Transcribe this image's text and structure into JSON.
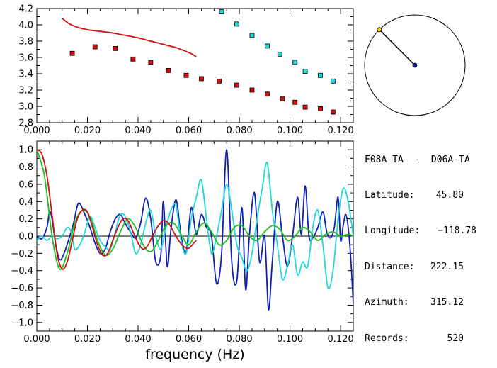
{
  "chart_data": [
    {
      "type": "scatter",
      "xlim": [
        0.0,
        0.125
      ],
      "ylim": [
        2.8,
        4.2
      ],
      "x_ticks": [
        "0.000",
        "0.020",
        "0.040",
        "0.060",
        "0.080",
        "0.100",
        "0.120"
      ],
      "y_ticks": [
        "2.8",
        "3.0",
        "3.2",
        "3.4",
        "3.6",
        "3.8",
        "4.0",
        "4.2"
      ],
      "series": [
        {
          "kind": "line",
          "color": "#d01010",
          "x": [
            0.01,
            0.013,
            0.016,
            0.02,
            0.025,
            0.03,
            0.035,
            0.04,
            0.045,
            0.05,
            0.055,
            0.06,
            0.063
          ],
          "y": [
            4.08,
            4.01,
            3.97,
            3.94,
            3.92,
            3.9,
            3.87,
            3.84,
            3.8,
            3.76,
            3.72,
            3.66,
            3.61
          ]
        },
        {
          "kind": "markers",
          "color": "#d01010",
          "x": [
            0.014,
            0.023,
            0.031,
            0.038,
            0.045,
            0.052,
            0.059,
            0.065,
            0.072,
            0.079,
            0.085,
            0.091,
            0.097,
            0.102,
            0.106,
            0.112,
            0.117
          ],
          "y": [
            3.65,
            3.73,
            3.71,
            3.58,
            3.54,
            3.44,
            3.38,
            3.34,
            3.31,
            3.26,
            3.2,
            3.15,
            3.09,
            3.05,
            2.99,
            2.97,
            2.93
          ]
        },
        {
          "kind": "markers",
          "color": "#20d8d8",
          "x": [
            0.073,
            0.079,
            0.085,
            0.091,
            0.096,
            0.102,
            0.106,
            0.112,
            0.117
          ],
          "y": [
            4.16,
            4.01,
            3.87,
            3.74,
            3.64,
            3.54,
            3.43,
            3.38,
            3.31
          ]
        }
      ]
    },
    {
      "type": "line",
      "xlim": [
        0.0,
        0.125
      ],
      "ylim": [
        -1.1,
        1.1
      ],
      "x_ticks": [
        "0.000",
        "0.020",
        "0.040",
        "0.060",
        "0.080",
        "0.100",
        "0.120"
      ],
      "y_ticks": [
        "1.0",
        "0.8",
        "0.6",
        "0.4",
        "0.2",
        "0.0",
        "−0.2",
        "−0.4",
        "−0.6",
        "−0.8",
        "−1.0"
      ],
      "xlabel": "frequency (Hz)",
      "zero_line": true,
      "series": [
        {
          "color": "#1020b0",
          "x": [
            0.0,
            0.002,
            0.004,
            0.005,
            0.006,
            0.0075,
            0.009,
            0.0105,
            0.0125,
            0.0145,
            0.0165,
            0.019,
            0.021,
            0.023,
            0.025,
            0.027,
            0.029,
            0.031,
            0.033,
            0.035,
            0.037,
            0.039,
            0.041,
            0.043,
            0.045,
            0.047,
            0.049,
            0.05,
            0.0515,
            0.053,
            0.055,
            0.057,
            0.059,
            0.061,
            0.063,
            0.065,
            0.067,
            0.069,
            0.071,
            0.073,
            0.075,
            0.077,
            0.079,
            0.081,
            0.0825,
            0.084,
            0.086,
            0.088,
            0.09,
            0.0915,
            0.093,
            0.095,
            0.097,
            0.099,
            0.101,
            0.103,
            0.1045,
            0.106,
            0.1075,
            0.109,
            0.111,
            0.113,
            0.1145,
            0.116,
            0.1175,
            0.119,
            0.12,
            0.121,
            0.122,
            0.123,
            0.124,
            0.125
          ],
          "y": [
            0.0,
            -0.03,
            0.1,
            0.28,
            0.2,
            -0.1,
            -0.27,
            -0.22,
            -0.05,
            0.15,
            0.38,
            0.25,
            0.1,
            -0.08,
            -0.2,
            -0.15,
            0.05,
            0.2,
            0.25,
            0.14,
            0.05,
            -0.02,
            0.15,
            0.44,
            0.2,
            -0.3,
            -0.22,
            0.4,
            -0.35,
            0.08,
            0.42,
            0.0,
            -0.18,
            0.33,
            0.02,
            0.25,
            0.1,
            0.0,
            -0.55,
            -0.2,
            1.0,
            -0.3,
            -0.52,
            0.33,
            -0.62,
            0.02,
            0.5,
            -0.3,
            0.0,
            -0.85,
            -0.3,
            0.4,
            0.0,
            -0.35,
            0.0,
            0.45,
            0.02,
            0.58,
            0.0,
            -0.02,
            0.1,
            0.28,
            0.05,
            -0.02,
            0.1,
            0.45,
            -0.05,
            0.12,
            0.25,
            0.1,
            -0.25,
            -0.78
          ]
        },
        {
          "color": "#20d8d8",
          "x": [
            0.0,
            0.002,
            0.004,
            0.006,
            0.008,
            0.01,
            0.012,
            0.0135,
            0.015,
            0.017,
            0.019,
            0.021,
            0.023,
            0.025,
            0.027,
            0.029,
            0.031,
            0.033,
            0.035,
            0.037,
            0.039,
            0.041,
            0.043,
            0.045,
            0.047,
            0.049,
            0.051,
            0.053,
            0.055,
            0.057,
            0.059,
            0.061,
            0.063,
            0.065,
            0.067,
            0.069,
            0.071,
            0.073,
            0.075,
            0.077,
            0.079,
            0.081,
            0.083,
            0.085,
            0.087,
            0.089,
            0.091,
            0.093,
            0.095,
            0.097,
            0.099,
            0.101,
            0.103,
            0.105,
            0.107,
            0.109,
            0.111,
            0.113,
            0.115,
            0.117,
            0.119,
            0.121,
            0.123,
            0.125
          ],
          "y": [
            -0.05,
            0.0,
            -0.05,
            0.0,
            -0.03,
            0.0,
            0.1,
            0.05,
            -0.15,
            -0.1,
            0.05,
            0.23,
            0.1,
            -0.05,
            -0.12,
            -0.15,
            0.05,
            0.25,
            0.22,
            0.05,
            -0.2,
            -0.1,
            0.15,
            0.3,
            0.0,
            -0.15,
            0.1,
            0.3,
            0.35,
            -0.05,
            -0.2,
            0.2,
            0.45,
            0.65,
            0.2,
            -0.2,
            0.0,
            0.3,
            0.6,
            0.3,
            -0.1,
            -0.25,
            -0.4,
            -0.2,
            0.2,
            0.55,
            0.85,
            0.3,
            -0.1,
            -0.5,
            -0.35,
            -0.1,
            -0.45,
            -0.3,
            -0.35,
            0.1,
            0.3,
            -0.1,
            -0.6,
            -0.4,
            0.2,
            0.55,
            0.4,
            0.0
          ]
        },
        {
          "color": "#20c020",
          "x": [
            0.0,
            0.003,
            0.006,
            0.009,
            0.012,
            0.015,
            0.018,
            0.021,
            0.024,
            0.027,
            0.03,
            0.033,
            0.036,
            0.039,
            0.042,
            0.045,
            0.048,
            0.051,
            0.054,
            0.057,
            0.06,
            0.063,
            0.066,
            0.069,
            0.072,
            0.075,
            0.078,
            0.081,
            0.084,
            0.087,
            0.09,
            0.093,
            0.096,
            0.099,
            0.102,
            0.105,
            0.108,
            0.111,
            0.114,
            0.117,
            0.12,
            0.123,
            0.125
          ],
          "y": [
            1.0,
            0.7,
            0.0,
            -0.38,
            -0.2,
            0.15,
            0.3,
            0.22,
            -0.05,
            -0.22,
            -0.15,
            0.05,
            0.2,
            0.1,
            -0.1,
            -0.18,
            -0.05,
            0.12,
            0.15,
            0.02,
            -0.1,
            0.05,
            0.15,
            0.05,
            -0.1,
            -0.05,
            0.1,
            0.12,
            0.0,
            -0.05,
            0.05,
            0.12,
            0.08,
            -0.05,
            0.0,
            0.1,
            0.05,
            -0.05,
            0.02,
            0.05,
            0.0,
            0.02,
            0.0
          ]
        },
        {
          "color": "#d01010",
          "x": [
            0.0,
            0.002,
            0.004,
            0.006,
            0.008,
            0.01,
            0.012,
            0.014,
            0.016,
            0.018,
            0.02,
            0.022,
            0.024,
            0.026,
            0.028,
            0.03,
            0.032,
            0.034,
            0.036,
            0.038,
            0.04,
            0.042,
            0.044,
            0.046,
            0.048,
            0.05,
            0.052,
            0.054,
            0.056,
            0.058,
            0.06,
            0.062,
            0.063
          ],
          "y": [
            1.0,
            0.95,
            0.7,
            0.25,
            -0.2,
            -0.38,
            -0.3,
            -0.05,
            0.2,
            0.3,
            0.28,
            0.1,
            -0.1,
            -0.22,
            -0.2,
            -0.05,
            0.1,
            0.2,
            0.18,
            0.05,
            -0.08,
            -0.15,
            -0.1,
            0.02,
            0.12,
            0.18,
            0.15,
            0.05,
            -0.05,
            -0.12,
            -0.14,
            -0.08,
            -0.05
          ]
        }
      ]
    }
  ],
  "compass": {
    "azimuth_deg": 315.12,
    "colors": {
      "center": "#1020b0",
      "end": "#f0d020",
      "needle": "#000000"
    }
  },
  "station": {
    "pair": "F08A-TA  -  D06A-TA",
    "latitude_label": "Latitude:",
    "latitude": "45.80",
    "longitude_label": "Longitude:",
    "longitude": "−118.78",
    "distance_label": "Distance:",
    "distance": "222.15",
    "azimuth_label": "Azimuth:",
    "azimuth": "315.12",
    "records_label": "Records:",
    "records": "520"
  }
}
